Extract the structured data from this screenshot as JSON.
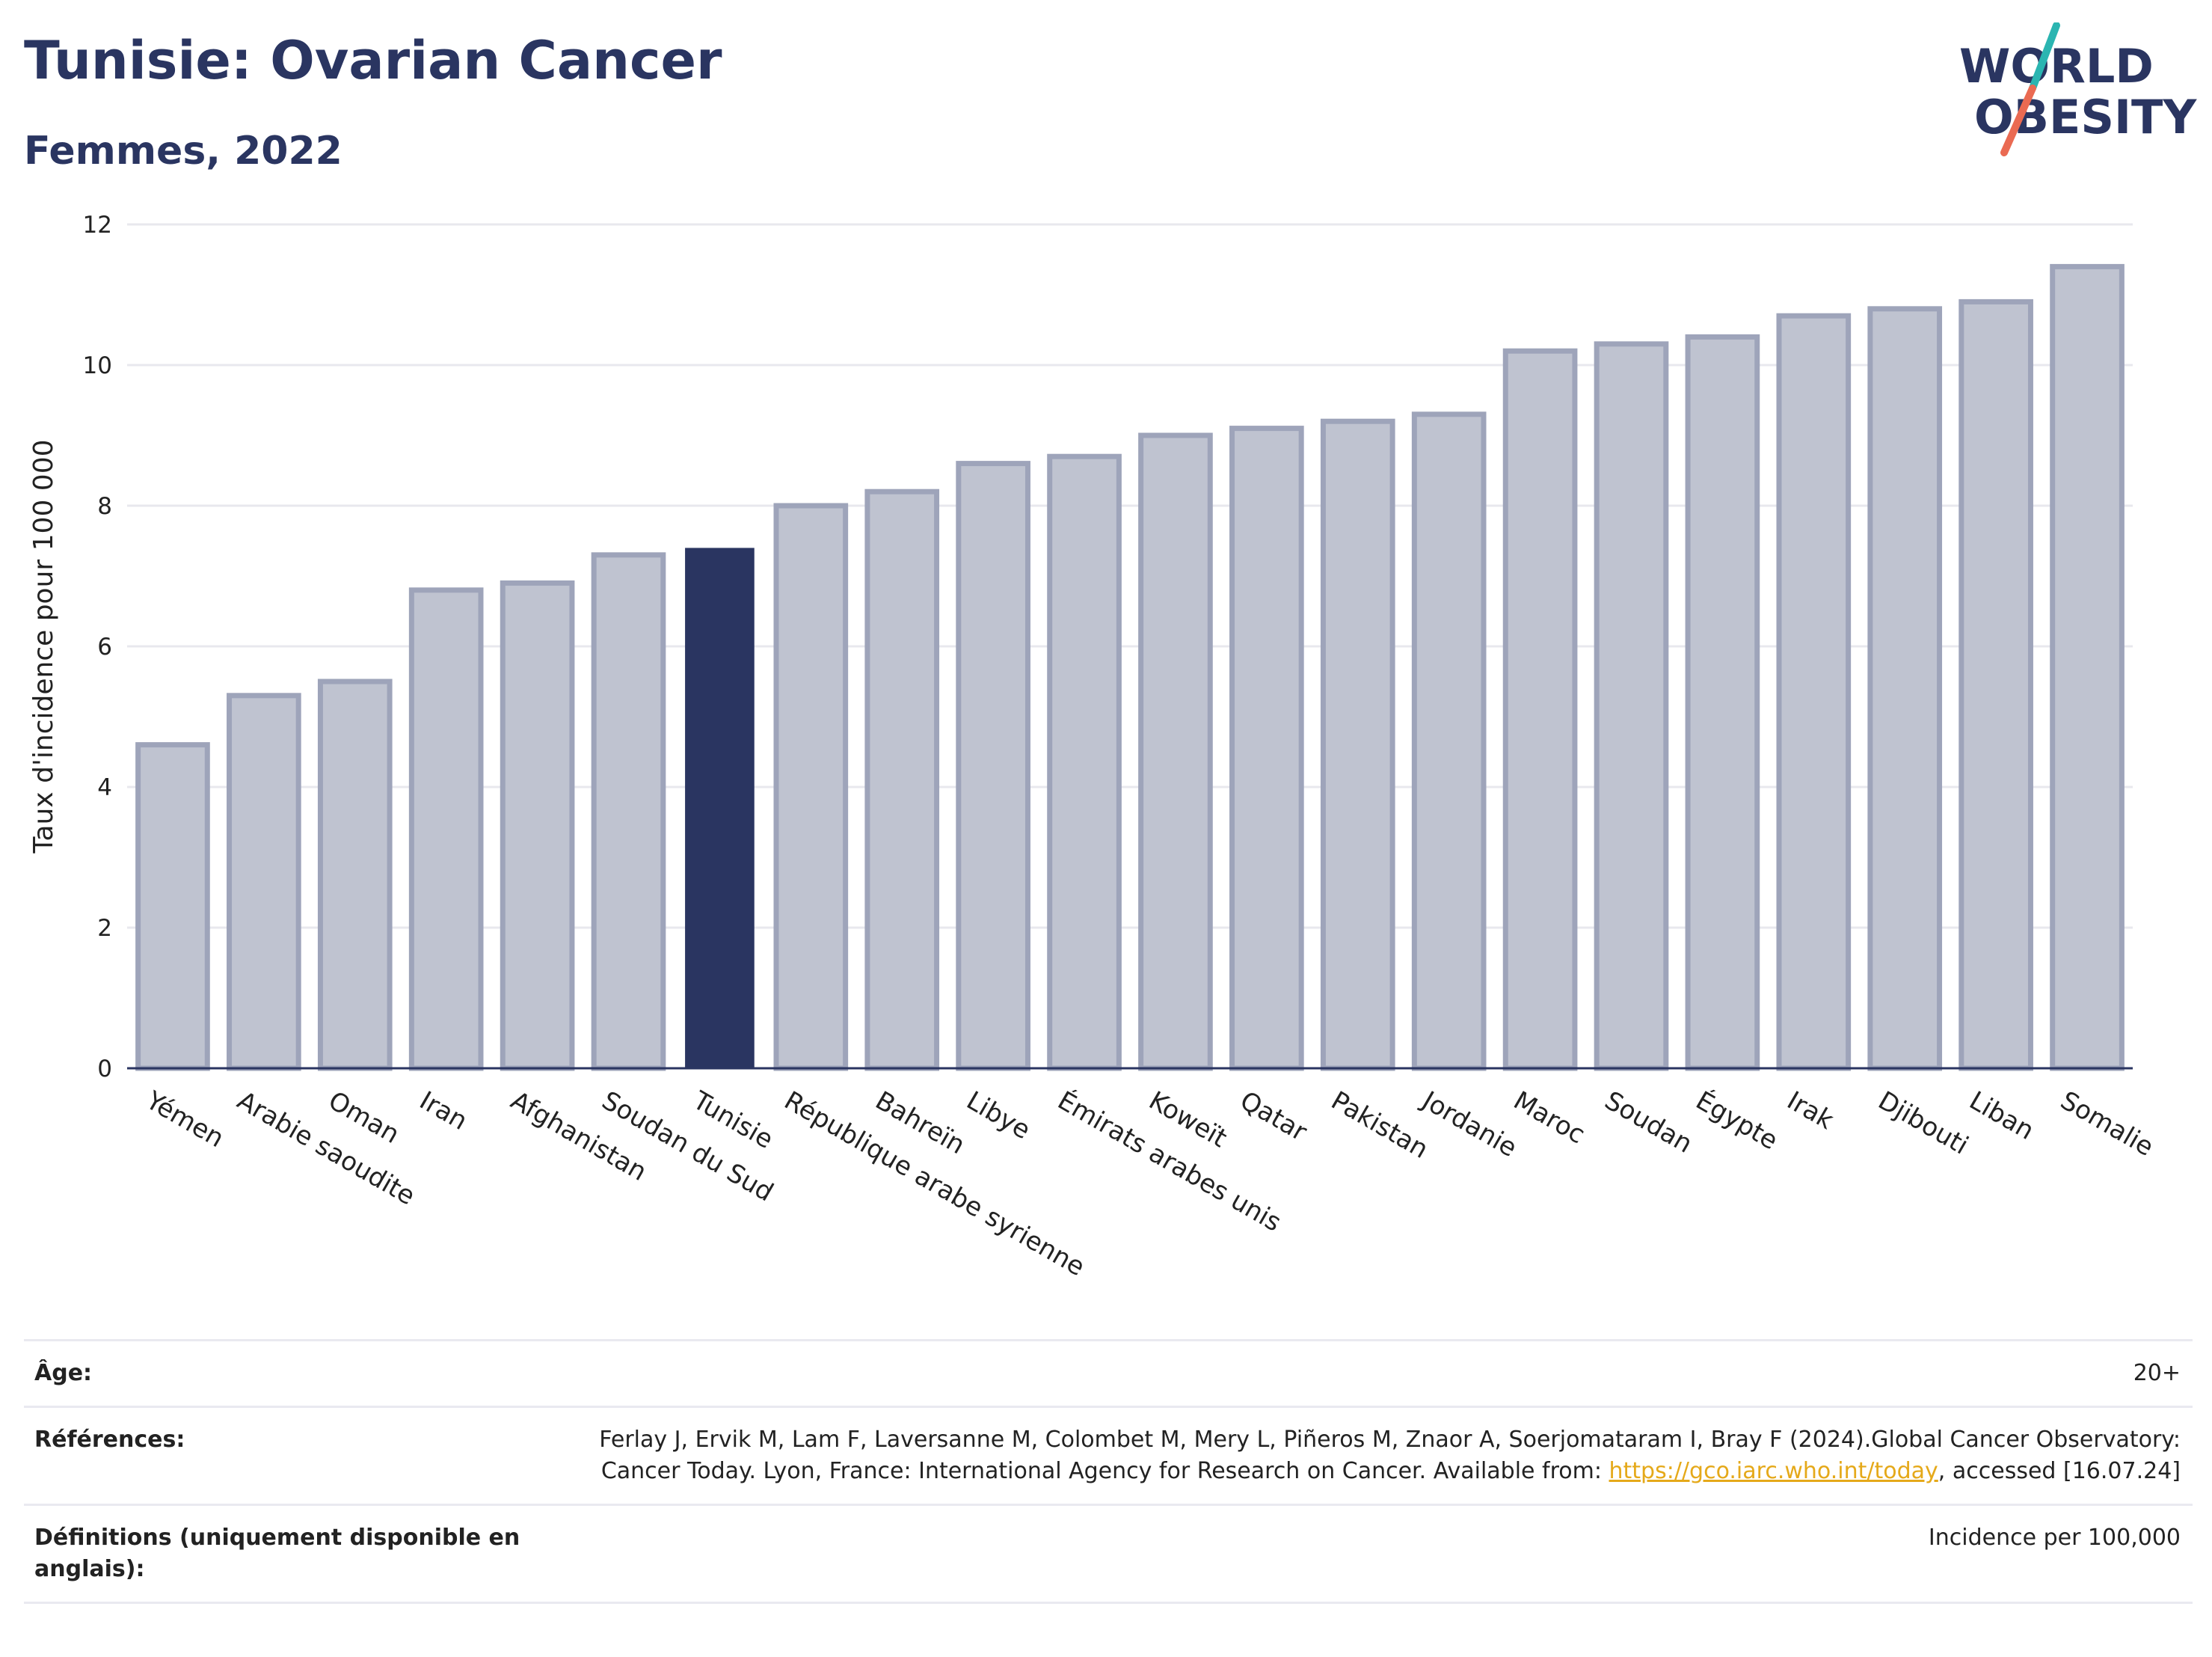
{
  "header": {
    "title": "Tunisie: Ovarian Cancer",
    "subtitle": "Femmes, 2022"
  },
  "logo": {
    "line1": "WORLD",
    "line2": "OBESITY",
    "colors": {
      "text": "#2a3561",
      "slash_top": "#2bb5b1",
      "slash_bottom": "#ea6a52"
    }
  },
  "chart_data": {
    "type": "bar",
    "title": "Tunisie: Ovarian Cancer",
    "subtitle": "Femmes, 2022",
    "xlabel": "",
    "ylabel": "Taux d'incidence pour 100 000",
    "ylim": [
      0,
      12
    ],
    "yticks": [
      0,
      2,
      4,
      6,
      8,
      10,
      12
    ],
    "grid": true,
    "highlight": "Tunisie",
    "colors": {
      "bar": "#bfc3d0",
      "bar_edge": "#9ea4ba",
      "highlight": "#2a3561",
      "axis": "#2a3561",
      "grid": "#e8e8ee"
    },
    "categories": [
      "Yémen",
      "Arabie saoudite",
      "Oman",
      "Iran",
      "Afghanistan",
      "Soudan du Sud",
      "Tunisie",
      "République arabe syrienne",
      "Bahreïn",
      "Libye",
      "Émirats arabes unis",
      "Koweït",
      "Qatar",
      "Pakistan",
      "Jordanie",
      "Maroc",
      "Soudan",
      "Égypte",
      "Irak",
      "Djibouti",
      "Liban",
      "Somalie"
    ],
    "values": [
      4.6,
      5.3,
      5.5,
      6.8,
      6.9,
      7.3,
      7.4,
      8.0,
      8.2,
      8.6,
      8.7,
      9.0,
      9.1,
      9.2,
      9.3,
      10.2,
      10.3,
      10.4,
      10.7,
      10.8,
      10.9,
      11.4
    ]
  },
  "meta": {
    "age_label": "Âge:",
    "age_value": "20+",
    "references_label": "Références:",
    "references_text_before": "Ferlay J, Ervik M, Lam F, Laversanne M, Colombet M, Mery L, Piñeros M, Znaor A, Soerjomataram I, Bray F (2024).Global Cancer Observatory: Cancer Today. Lyon, France: International Agency for Research on Cancer. Available from: ",
    "references_link": "https://gco.iarc.who.int/today",
    "references_text_after": ", accessed [16.07.24]",
    "definitions_label": "Définitions (uniquement disponible en anglais):",
    "definitions_value": "Incidence per 100,000"
  }
}
